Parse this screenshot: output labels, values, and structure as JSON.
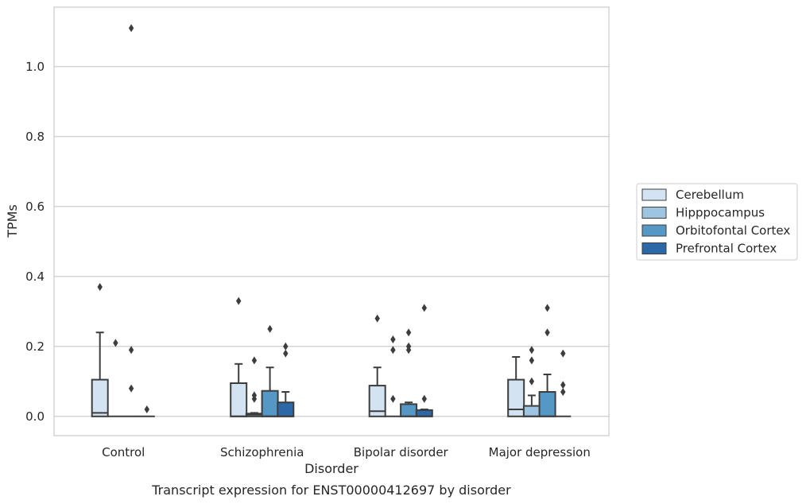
{
  "chart_data": {
    "type": "boxplot",
    "title": "Transcript expression for ENST00000412697 by disorder",
    "xlabel": "Disorder",
    "ylabel": "TPMs",
    "ylim": [
      -0.055,
      1.17
    ],
    "yticks": [
      "0.0",
      "0.2",
      "0.4",
      "0.6",
      "0.8",
      "1.0"
    ],
    "grid": "horizontal",
    "legend_position": "right",
    "categories": [
      "Control",
      "Schizophrenia",
      "Bipolar disorder",
      "Major depression"
    ],
    "series": [
      {
        "name": "Cerebellum",
        "color": "#d3e3f2",
        "boxes": [
          {
            "whislo": 0,
            "q1": 0.0,
            "med": 0.01,
            "q3": 0.105,
            "whishi": 0.24,
            "fliers": [
              0.37
            ]
          },
          {
            "whislo": 0,
            "q1": 0.0,
            "med": 0.0,
            "q3": 0.095,
            "whishi": 0.15,
            "fliers": [
              0.33
            ]
          },
          {
            "whislo": 0,
            "q1": 0.0,
            "med": 0.015,
            "q3": 0.088,
            "whishi": 0.14,
            "fliers": [
              0.28
            ]
          },
          {
            "whislo": 0,
            "q1": 0.0,
            "med": 0.02,
            "q3": 0.105,
            "whishi": 0.17,
            "fliers": []
          }
        ]
      },
      {
        "name": "Hipppocampus",
        "color": "#9dc4e0",
        "boxes": [
          {
            "whislo": 0,
            "q1": 0.0,
            "med": 0.0,
            "q3": 0.0,
            "whishi": 0.0,
            "fliers": [
              0.21
            ]
          },
          {
            "whislo": 0,
            "q1": 0.0,
            "med": 0.005,
            "q3": 0.008,
            "whishi": 0.01,
            "fliers": [
              0.05,
              0.06,
              0.16
            ]
          },
          {
            "whislo": 0,
            "q1": 0.0,
            "med": 0.0,
            "q3": 0.0,
            "whishi": 0.0,
            "fliers": [
              0.05,
              0.19,
              0.22
            ]
          },
          {
            "whislo": 0,
            "q1": 0.0,
            "med": 0.0,
            "q3": 0.03,
            "whishi": 0.06,
            "fliers": [
              0.1,
              0.16,
              0.19
            ]
          }
        ]
      },
      {
        "name": "Orbitofontal Cortex",
        "color": "#5597c5",
        "boxes": [
          {
            "whislo": 0,
            "q1": 0.0,
            "med": 0.0,
            "q3": 0.0,
            "whishi": 0.0,
            "fliers": [
              0.08,
              0.19,
              1.11
            ]
          },
          {
            "whislo": 0,
            "q1": 0.0,
            "med": 0.0,
            "q3": 0.073,
            "whishi": 0.14,
            "fliers": [
              0.25
            ]
          },
          {
            "whislo": 0,
            "q1": 0.0,
            "med": 0.0,
            "q3": 0.035,
            "whishi": 0.04,
            "fliers": [
              0.19,
              0.2,
              0.24
            ]
          },
          {
            "whislo": 0,
            "q1": 0.0,
            "med": 0.0,
            "q3": 0.07,
            "whishi": 0.12,
            "fliers": [
              0.24,
              0.31
            ]
          }
        ]
      },
      {
        "name": "Prefrontal Cortex",
        "color": "#2c67a8",
        "boxes": [
          {
            "whislo": 0,
            "q1": 0.0,
            "med": 0.0,
            "q3": 0.0,
            "whishi": 0.0,
            "fliers": [
              0.02
            ]
          },
          {
            "whislo": 0,
            "q1": 0.0,
            "med": 0.0,
            "q3": 0.04,
            "whishi": 0.07,
            "fliers": [
              0.18,
              0.2
            ]
          },
          {
            "whislo": 0,
            "q1": 0.0,
            "med": 0.0,
            "q3": 0.018,
            "whishi": 0.02,
            "fliers": [
              0.05,
              0.31
            ]
          },
          {
            "whislo": 0,
            "q1": 0.0,
            "med": 0.0,
            "q3": 0.0,
            "whishi": 0.0,
            "fliers": [
              0.07,
              0.09,
              0.18
            ]
          }
        ]
      }
    ],
    "colors": {
      "grid": "#cccccc",
      "frame": "#cccccc",
      "box_edge": "#3d3d3d",
      "text": "#262626"
    }
  }
}
